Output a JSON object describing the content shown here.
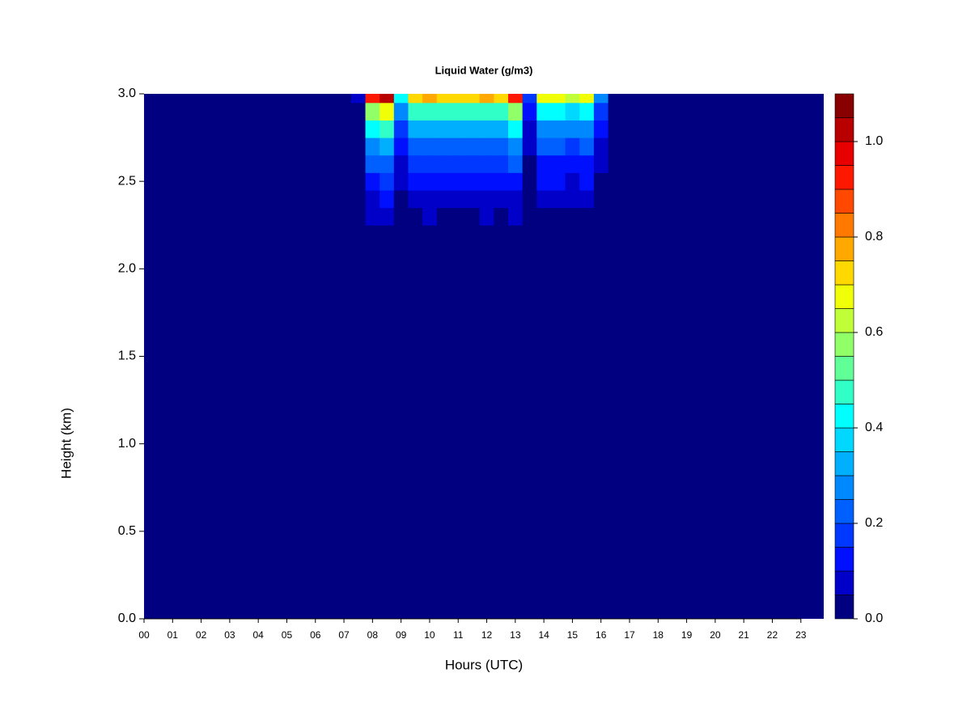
{
  "chart_data": {
    "type": "contour",
    "title": "Liquid Water (g/m3)",
    "xlabel": "Hours (UTC)",
    "ylabel": "Height (km)",
    "xlim": [
      0,
      23.8
    ],
    "ylim": [
      0,
      3
    ],
    "xticks": [
      {
        "value": 0,
        "label": "00"
      },
      {
        "value": 1,
        "label": "01"
      },
      {
        "value": 2,
        "label": "02"
      },
      {
        "value": 3,
        "label": "03"
      },
      {
        "value": 4,
        "label": "04"
      },
      {
        "value": 5,
        "label": "05"
      },
      {
        "value": 6,
        "label": "06"
      },
      {
        "value": 7,
        "label": "07"
      },
      {
        "value": 8,
        "label": "08"
      },
      {
        "value": 9,
        "label": "09"
      },
      {
        "value": 10,
        "label": "10"
      },
      {
        "value": 11,
        "label": "11"
      },
      {
        "value": 12,
        "label": "12"
      },
      {
        "value": 13,
        "label": "13"
      },
      {
        "value": 14,
        "label": "14"
      },
      {
        "value": 15,
        "label": "15"
      },
      {
        "value": 16,
        "label": "16"
      },
      {
        "value": 17,
        "label": "17"
      },
      {
        "value": 18,
        "label": "18"
      },
      {
        "value": 19,
        "label": "19"
      },
      {
        "value": 20,
        "label": "20"
      },
      {
        "value": 21,
        "label": "21"
      },
      {
        "value": 22,
        "label": "22"
      },
      {
        "value": 23,
        "label": "23"
      }
    ],
    "yticks": [
      {
        "value": 0,
        "label": "0.0"
      },
      {
        "value": 0.5,
        "label": "0.5"
      },
      {
        "value": 1,
        "label": "1.0"
      },
      {
        "value": 1.5,
        "label": "1.5"
      },
      {
        "value": 2,
        "label": "2.0"
      },
      {
        "value": 2.5,
        "label": "2.5"
      },
      {
        "value": 3,
        "label": "3.0"
      }
    ],
    "x": [
      7.5,
      8,
      8.5,
      9,
      9.5,
      10,
      10.5,
      11,
      11.5,
      12,
      12.5,
      13,
      13.5,
      14,
      14.5,
      15,
      15.5,
      16,
      16.5
    ],
    "y": [
      2.2,
      2.3,
      2.4,
      2.5,
      2.6,
      2.7,
      2.8,
      2.9,
      3.0
    ],
    "z": [
      [
        0,
        0.03,
        0.03,
        0.01,
        0.02,
        0.02,
        0.02,
        0.02,
        0.02,
        0.02,
        0.02,
        0.03,
        0,
        0.02,
        0.02,
        0.02,
        0.02,
        0.01,
        0
      ],
      [
        0,
        0.05,
        0.06,
        0.02,
        0.04,
        0.05,
        0.04,
        0.04,
        0.04,
        0.05,
        0.04,
        0.05,
        0.01,
        0.04,
        0.04,
        0.04,
        0.04,
        0.02,
        0
      ],
      [
        0,
        0.09,
        0.1,
        0.04,
        0.07,
        0.08,
        0.07,
        0.07,
        0.07,
        0.08,
        0.07,
        0.09,
        0.02,
        0.07,
        0.07,
        0.06,
        0.07,
        0.03,
        0
      ],
      [
        0.01,
        0.14,
        0.15,
        0.06,
        0.11,
        0.11,
        0.11,
        0.11,
        0.11,
        0.11,
        0.11,
        0.14,
        0.02,
        0.1,
        0.1,
        0.09,
        0.1,
        0.04,
        0
      ],
      [
        0.01,
        0.2,
        0.22,
        0.09,
        0.15,
        0.17,
        0.15,
        0.15,
        0.15,
        0.17,
        0.15,
        0.2,
        0.03,
        0.14,
        0.14,
        0.13,
        0.14,
        0.06,
        0
      ],
      [
        0.02,
        0.29,
        0.32,
        0.13,
        0.22,
        0.24,
        0.22,
        0.22,
        0.22,
        0.24,
        0.22,
        0.29,
        0.05,
        0.21,
        0.21,
        0.19,
        0.21,
        0.08,
        0
      ],
      [
        0.02,
        0.41,
        0.45,
        0.18,
        0.32,
        0.34,
        0.32,
        0.32,
        0.32,
        0.34,
        0.32,
        0.41,
        0.07,
        0.29,
        0.29,
        0.27,
        0.29,
        0.11,
        0
      ],
      [
        0.03,
        0.59,
        0.65,
        0.26,
        0.46,
        0.49,
        0.46,
        0.46,
        0.46,
        0.49,
        0.46,
        0.59,
        0.1,
        0.42,
        0.42,
        0.39,
        0.42,
        0.16,
        0
      ],
      [
        0.05,
        0.9,
        1.0,
        0.4,
        0.7,
        0.75,
        0.7,
        0.7,
        0.7,
        0.75,
        0.7,
        0.9,
        0.15,
        0.65,
        0.65,
        0.6,
        0.65,
        0.25,
        0
      ]
    ],
    "levels": [
      0,
      0.05,
      0.1,
      0.15,
      0.2,
      0.25,
      0.3,
      0.35,
      0.4,
      0.45,
      0.5,
      0.55,
      0.6,
      0.65,
      0.7,
      0.75,
      0.8,
      0.85,
      0.9,
      0.95,
      1.0,
      1.05,
      1.1
    ],
    "colors": [
      "#000080",
      "#0000C8",
      "#0010FF",
      "#0038FF",
      "#0060FF",
      "#0088FF",
      "#00B0FF",
      "#00D8FF",
      "#00FFFF",
      "#30FFC8",
      "#60FF98",
      "#90FF68",
      "#C0FF38",
      "#F0FF08",
      "#FFD800",
      "#FFA800",
      "#FF7800",
      "#FF4800",
      "#FF1800",
      "#E80000",
      "#B80000",
      "#880000"
    ],
    "colorbar_ticks": [
      {
        "value": 0,
        "label": "0.0"
      },
      {
        "value": 0.2,
        "label": "0.2"
      },
      {
        "value": 0.4,
        "label": "0.4"
      },
      {
        "value": 0.6,
        "label": "0.6"
      },
      {
        "value": 0.8,
        "label": "0.8"
      },
      {
        "value": 1.0,
        "label": "1.0"
      }
    ]
  }
}
